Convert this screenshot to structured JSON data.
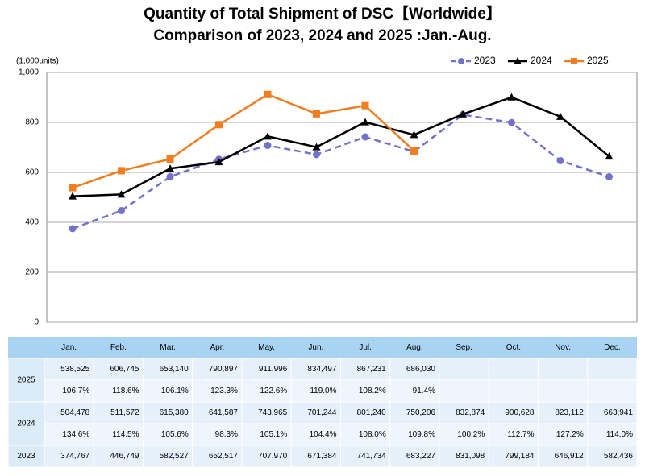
{
  "chart_data": {
    "type": "line",
    "title": "Quantity of Total Shipment of DSC【Worldwide】",
    "subtitle": "Comparison of 2023, 2024 and 2025 :Jan.-Aug.",
    "y_label": "(1,000units)",
    "categories": [
      "Jan.",
      "Feb.",
      "Mar.",
      "Apr.",
      "May.",
      "Jun.",
      "Jul.",
      "Aug.",
      "Sep.",
      "Oct.",
      "Nov.",
      "Dec."
    ],
    "ylim": [
      0,
      1000
    ],
    "yticks": [
      0,
      200,
      400,
      600,
      800,
      {
        "value": 1000,
        "label": "1,000"
      }
    ],
    "grid": true,
    "legend": "top-right",
    "series": [
      {
        "name": "2023",
        "color": "#7471c9",
        "dash": true,
        "marker": "circle",
        "values": [
          374.767,
          446.749,
          582.527,
          652.517,
          707.97,
          671.384,
          741.734,
          683.227,
          831.098,
          799.184,
          646.912,
          582.436
        ],
        "value_labels": [
          "374,767",
          "446,749",
          "582,527",
          "652,517",
          "707,970",
          "671,384",
          "741,734",
          "683,227",
          "831,098",
          "799,184",
          "646,912",
          "582,436"
        ]
      },
      {
        "name": "2024",
        "color": "#000000",
        "dash": false,
        "marker": "triangle",
        "values": [
          504.478,
          511.572,
          615.38,
          641.587,
          743.965,
          701.244,
          801.24,
          750.206,
          832.874,
          900.628,
          823.112,
          663.941
        ],
        "value_labels": [
          "504,478",
          "511,572",
          "615,380",
          "641,587",
          "743,965",
          "701,244",
          "801,240",
          "750,206",
          "832,874",
          "900,628",
          "823,112",
          "663,941"
        ],
        "yoy": [
          "134.6%",
          "114.5%",
          "105.6%",
          "98.3%",
          "105.1%",
          "104.4%",
          "108.0%",
          "109.8%",
          "100.2%",
          "112.7%",
          "127.2%",
          "114.0%"
        ]
      },
      {
        "name": "2025",
        "color": "#f07d1f",
        "dash": false,
        "marker": "square",
        "values": [
          538.525,
          606.745,
          653.14,
          790.897,
          911.996,
          834.497,
          867.231,
          686.03,
          null,
          null,
          null,
          null
        ],
        "value_labels": [
          "538,525",
          "606,745",
          "653,140",
          "790,897",
          "911,996",
          "834,497",
          "867,231",
          "686,030",
          null,
          null,
          null,
          null
        ],
        "yoy": [
          "106.7%",
          "118.6%",
          "106.1%",
          "123.3%",
          "122.6%",
          "119.0%",
          "108.2%",
          "91.4%",
          null,
          null,
          null,
          null
        ]
      }
    ]
  }
}
